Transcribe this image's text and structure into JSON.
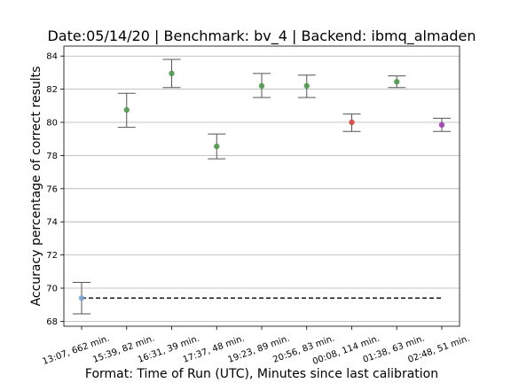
{
  "chart_data": {
    "type": "scatter",
    "title": "Date:05/14/20 | Benchmark: bv_4 | Backend: ibmq_almaden",
    "xlabel": "Format: Time of Run (UTC), Minutes since last calibration",
    "ylabel": "Accuracy percentage of correct results",
    "categories": [
      "13:07, 662 min.",
      "15:39, 82 min.",
      "16:31, 39 min.",
      "17:37, 48 min.",
      "19:23, 89 min.",
      "20:56, 83 min.",
      "00:08, 114 min.",
      "01:38, 63 min.",
      "02:48, 51 min."
    ],
    "points": [
      {
        "y": 69.4,
        "err_low": 68.45,
        "err_high": 70.35,
        "color": "#7aa6d6"
      },
      {
        "y": 80.75,
        "err_low": 79.7,
        "err_high": 81.75,
        "color": "#4c9a4c"
      },
      {
        "y": 82.95,
        "err_low": 82.1,
        "err_high": 83.8,
        "color": "#4c9a4c"
      },
      {
        "y": 78.55,
        "err_low": 77.8,
        "err_high": 79.3,
        "color": "#4c9a4c"
      },
      {
        "y": 82.2,
        "err_low": 81.5,
        "err_high": 82.95,
        "color": "#4c9a4c"
      },
      {
        "y": 82.2,
        "err_low": 81.5,
        "err_high": 82.85,
        "color": "#4c9a4c"
      },
      {
        "y": 80.0,
        "err_low": 79.45,
        "err_high": 80.5,
        "color": "#d64545"
      },
      {
        "y": 82.45,
        "err_low": 82.1,
        "err_high": 82.8,
        "color": "#4c9a4c"
      },
      {
        "y": 79.85,
        "err_low": 79.45,
        "err_high": 80.25,
        "color": "#a040b0"
      }
    ],
    "reference_line": {
      "y": 69.4,
      "style": "dashed",
      "color": "#000000"
    },
    "ylim": [
      67.7,
      84.6
    ],
    "yticks": [
      "68",
      "70",
      "72",
      "74",
      "76",
      "78",
      "80",
      "82",
      "84"
    ],
    "grid": "horizontal",
    "x_tick_rotation": "rotated"
  }
}
